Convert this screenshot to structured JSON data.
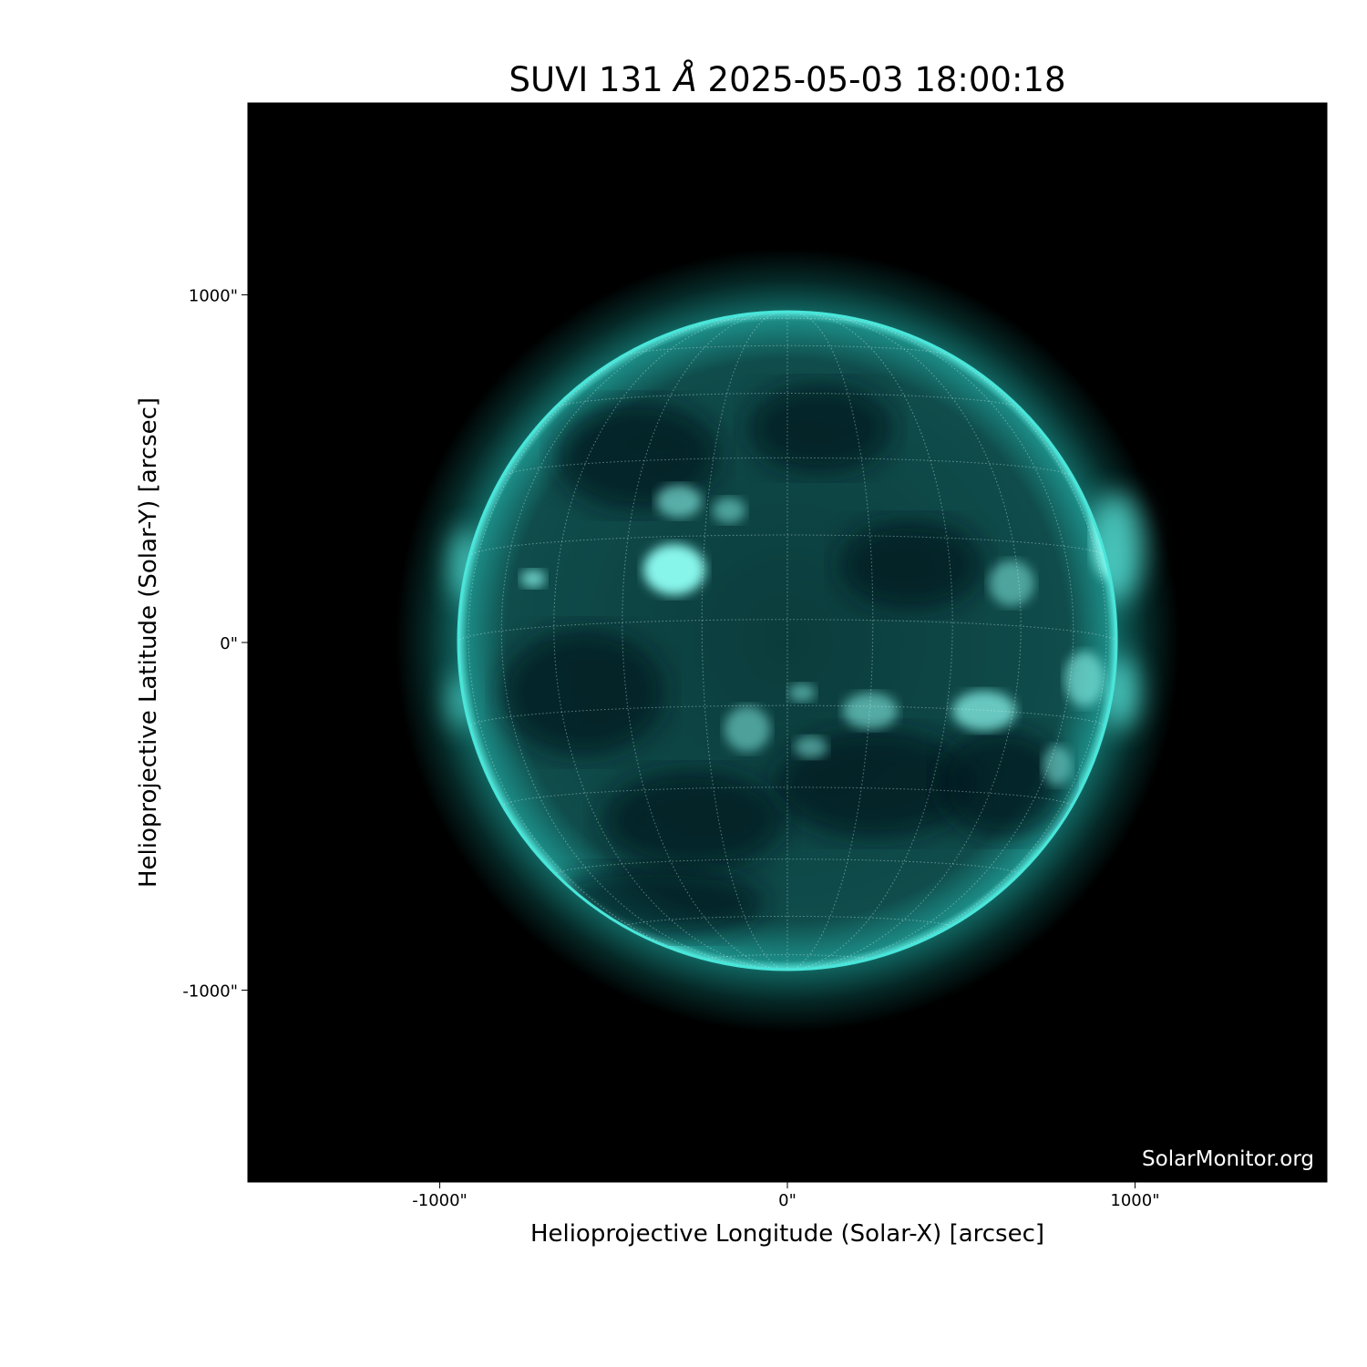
{
  "title": {
    "instrument": "SUVI 131",
    "unit_symbol": "Å",
    "datetime": "2025-05-03 18:00:18"
  },
  "watermark": "SolarMonitor.org",
  "chart_data": {
    "type": "image",
    "title": "SUVI 131 Å 2025-05-03 18:00:18",
    "xlabel": "Helioprojective Longitude (Solar-X) [arcsec]",
    "ylabel": "Helioprojective Latitude (Solar-Y) [arcsec]",
    "xlim": [
      -1552,
      1552
    ],
    "ylim": [
      -1552,
      1552
    ],
    "x_ticks": [
      {
        "value": -1000,
        "label": "-1000\""
      },
      {
        "value": 0,
        "label": "0\""
      },
      {
        "value": 1000,
        "label": "1000\""
      }
    ],
    "y_ticks": [
      {
        "value": 1000,
        "label": "1000\""
      },
      {
        "value": 0,
        "label": "0\""
      },
      {
        "value": -1000,
        "label": "-1000\""
      }
    ],
    "solar_radius_arcsec": 950,
    "grid": "heliographic, 15° spacing, dotted",
    "colormap": "black to cyan",
    "colors": {
      "disk": "#0e4a4a",
      "bright": "#7ffff4",
      "limb": "#2fd8cc",
      "background": "#000000"
    }
  }
}
